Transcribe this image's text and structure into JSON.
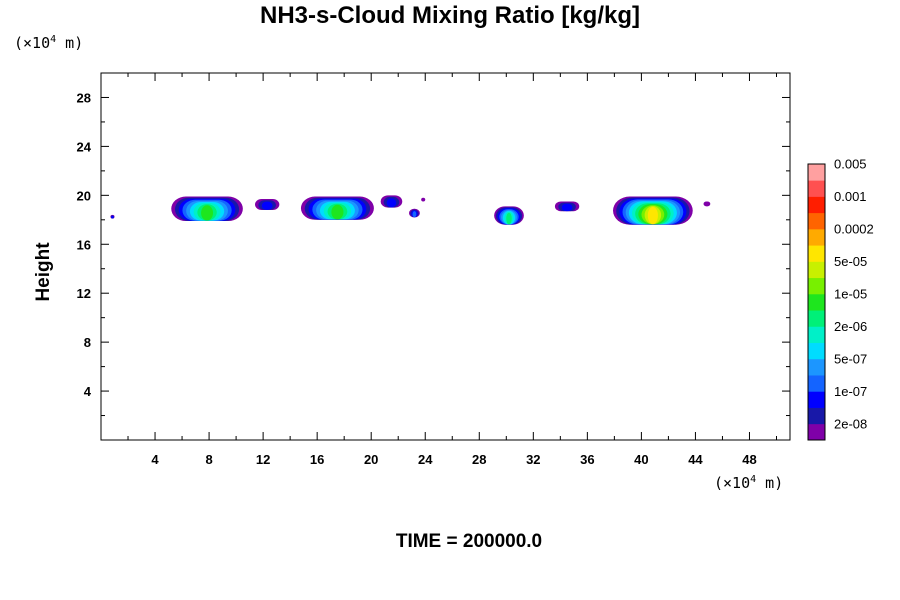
{
  "chart_data": {
    "type": "heatmap",
    "title": "NH3-s-Cloud Mixing Ratio [kg/kg]",
    "x_unit_prefix": "(×10",
    "x_unit_exp": "4",
    "x_unit_suffix": " m)",
    "y_unit_prefix": "(×10",
    "y_unit_exp": "4",
    "y_unit_suffix": " m)",
    "ylabel": "Height",
    "xlim": [
      0,
      51
    ],
    "ylim": [
      0,
      30
    ],
    "x_ticks": [
      "4",
      "8",
      "12",
      "16",
      "20",
      "24",
      "28",
      "32",
      "36",
      "40",
      "44",
      "48"
    ],
    "y_ticks": [
      "4",
      "8",
      "12",
      "16",
      "20",
      "24",
      "28"
    ],
    "colorbar_colors": [
      "#7f00a8",
      "#1818a8",
      "#0000ff",
      "#1464ff",
      "#1c96ff",
      "#00dcff",
      "#00f0c8",
      "#00f078",
      "#1ee61e",
      "#78f000",
      "#c8f000",
      "#ffe600",
      "#ffaa00",
      "#ff6400",
      "#ff1e00",
      "#ff5050",
      "#ffa0a0"
    ],
    "colorbar_labels": [
      "2e-08",
      "1e-07",
      "5e-07",
      "2e-06",
      "1e-05",
      "5e-05",
      "0.0002",
      "0.001",
      "0.005"
    ],
    "clouds": [
      {
        "x0": 5.2,
        "x1": 10.5,
        "ybase": 17.9,
        "ytop": 19.9,
        "peak": 8
      },
      {
        "x0": 11.4,
        "x1": 13.2,
        "ybase": 18.8,
        "ytop": 19.7,
        "peak": 2
      },
      {
        "x0": 14.8,
        "x1": 20.2,
        "ybase": 18.0,
        "ytop": 19.9,
        "peak": 8
      },
      {
        "x0": 20.7,
        "x1": 22.3,
        "ybase": 19.0,
        "ytop": 20.0,
        "peak": 2
      },
      {
        "x0": 22.8,
        "x1": 23.6,
        "ybase": 18.2,
        "ytop": 18.9,
        "peak": 3
      },
      {
        "x0": 29.1,
        "x1": 31.3,
        "ybase": 17.6,
        "ytop": 19.1,
        "peak": 7
      },
      {
        "x0": 33.6,
        "x1": 35.4,
        "ybase": 18.7,
        "ytop": 19.5,
        "peak": 2
      },
      {
        "x0": 37.9,
        "x1": 43.8,
        "ybase": 17.6,
        "ytop": 19.9,
        "peak": 11
      },
      {
        "x0": 44.6,
        "x1": 45.1,
        "ybase": 19.1,
        "ytop": 19.5,
        "peak": 0
      },
      {
        "x0": 0.7,
        "x1": 1.0,
        "ybase": 18.1,
        "ytop": 18.4,
        "peak": 2
      },
      {
        "x0": 23.7,
        "x1": 24.0,
        "ybase": 19.5,
        "ytop": 19.8,
        "peak": 0
      }
    ]
  },
  "time_label": "TIME = 200000.0"
}
